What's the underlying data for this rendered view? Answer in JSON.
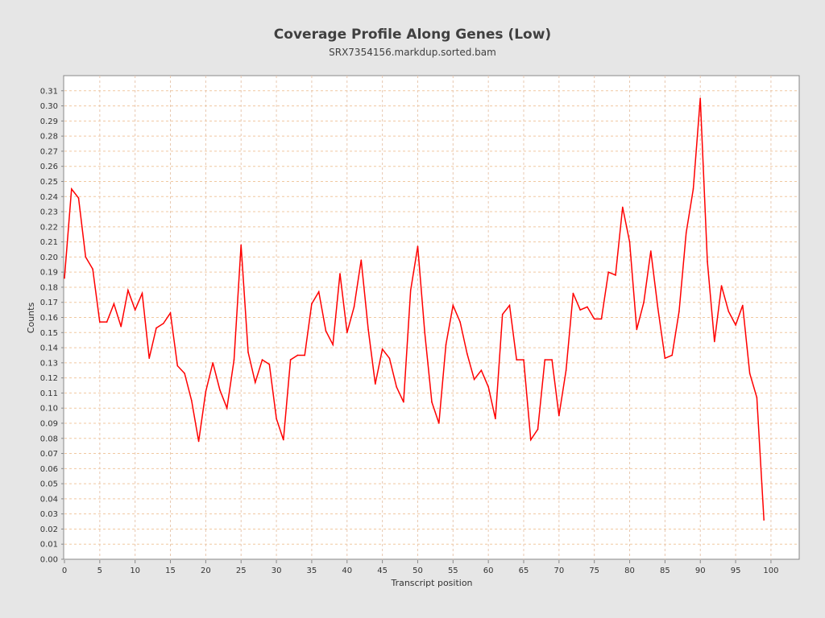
{
  "chart_data": {
    "type": "line",
    "title": "Coverage Profile Along Genes (Low)",
    "subtitle": "SRX7354156.markdup.sorted.bam",
    "xlabel": "Transcript position",
    "ylabel": "Counts",
    "xlim": [
      0,
      104
    ],
    "ylim": [
      0,
      0.32
    ],
    "grid": true,
    "x_ticks": [
      "0",
      "5",
      "10",
      "15",
      "20",
      "25",
      "30",
      "35",
      "40",
      "45",
      "50",
      "55",
      "60",
      "65",
      "70",
      "75",
      "80",
      "85",
      "90",
      "95",
      "100"
    ],
    "y_ticks": [
      "0.00",
      "0.01",
      "0.02",
      "0.03",
      "0.04",
      "0.05",
      "0.06",
      "0.07",
      "0.08",
      "0.09",
      "0.10",
      "0.11",
      "0.12",
      "0.13",
      "0.14",
      "0.15",
      "0.16",
      "0.17",
      "0.18",
      "0.19",
      "0.20",
      "0.21",
      "0.22",
      "0.23",
      "0.24",
      "0.25",
      "0.26",
      "0.27",
      "0.28",
      "0.29",
      "0.30",
      "0.31"
    ],
    "series": [
      {
        "name": "coverage",
        "color": "#ff0000",
        "values": [
          0.186,
          0.245,
          0.239,
          0.2,
          0.192,
          0.157,
          0.157,
          0.169,
          0.154,
          0.178,
          0.165,
          0.176,
          0.133,
          0.153,
          0.156,
          0.163,
          0.128,
          0.123,
          0.105,
          0.078,
          0.111,
          0.13,
          0.112,
          0.1,
          0.132,
          0.208,
          0.137,
          0.117,
          0.132,
          0.129,
          0.093,
          0.079,
          0.132,
          0.135,
          0.135,
          0.169,
          0.177,
          0.151,
          0.142,
          0.189,
          0.15,
          0.167,
          0.198,
          0.152,
          0.116,
          0.139,
          0.133,
          0.114,
          0.104,
          0.178,
          0.207,
          0.15,
          0.104,
          0.09,
          0.142,
          0.168,
          0.157,
          0.136,
          0.119,
          0.125,
          0.114,
          0.093,
          0.162,
          0.168,
          0.132,
          0.132,
          0.079,
          0.086,
          0.132,
          0.132,
          0.095,
          0.125,
          0.176,
          0.165,
          0.167,
          0.159,
          0.159,
          0.19,
          0.188,
          0.233,
          0.21,
          0.152,
          0.17,
          0.204,
          0.166,
          0.133,
          0.135,
          0.164,
          0.216,
          0.245,
          0.305,
          0.197,
          0.144,
          0.181,
          0.164,
          0.155,
          0.168,
          0.123,
          0.107,
          0.026
        ]
      }
    ]
  }
}
